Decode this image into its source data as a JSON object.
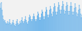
{
  "chart_data": {
    "type": "area",
    "values": [
      72,
      60,
      75,
      55,
      40,
      30,
      25,
      28,
      22,
      18,
      20,
      25,
      18,
      22,
      30,
      20,
      15,
      18,
      22,
      28,
      20,
      15,
      12,
      18,
      25,
      30,
      20,
      15,
      18,
      25,
      20,
      28,
      35,
      25,
      20,
      25,
      30,
      38,
      28,
      22,
      18,
      25,
      35,
      42,
      38,
      30,
      25,
      30,
      38,
      45,
      38,
      30,
      25,
      30,
      40,
      50,
      45,
      35,
      28,
      35,
      45,
      55,
      50,
      38,
      30,
      38,
      50,
      62,
      55,
      42,
      35,
      42,
      55,
      65,
      58,
      45,
      38,
      50,
      62,
      72,
      65,
      50,
      42,
      50,
      62,
      75,
      68,
      55,
      45,
      55,
      65,
      78,
      70,
      55,
      45,
      52,
      65,
      75,
      68,
      52,
      42,
      52,
      65,
      75,
      65,
      50,
      42,
      50,
      60,
      72,
      62,
      48,
      38,
      45,
      55,
      68,
      58,
      45,
      35,
      42
    ],
    "color": "#4da6e8",
    "xlim": [
      0,
      119
    ],
    "ylim": [
      0,
      82
    ],
    "grid": false,
    "tick_labels": false
  }
}
